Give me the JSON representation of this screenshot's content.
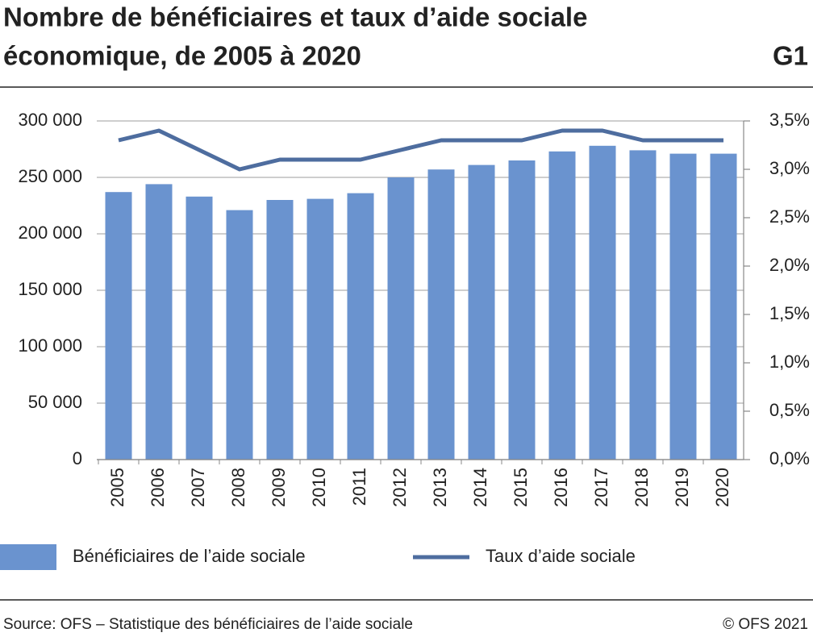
{
  "chart_data": {
    "type": "bar+line",
    "title": [
      "Nombre de bénéficiaires et taux d’aide sociale",
      "économique, de 2005 à 2020"
    ],
    "figure_label": "G1",
    "categories": [
      "2005",
      "2006",
      "2007",
      "2008",
      "2009",
      "2010",
      "2011",
      "2012",
      "2013",
      "2014",
      "2015",
      "2016",
      "2017",
      "2018",
      "2019",
      "2020"
    ],
    "series": [
      {
        "name": "Bénéficiaires de l’aide sociale",
        "type": "bar",
        "color": "#6a93cf",
        "values": [
          237000,
          244000,
          233000,
          221000,
          230000,
          231000,
          236000,
          250000,
          257000,
          261000,
          265000,
          273000,
          278000,
          274000,
          271000,
          271000
        ]
      },
      {
        "name": "Taux d’aide sociale",
        "type": "line",
        "axis": "y2",
        "color": "#4e6d9f",
        "values": [
          3.3,
          3.4,
          3.2,
          3.0,
          3.1,
          3.1,
          3.1,
          3.2,
          3.3,
          3.3,
          3.3,
          3.4,
          3.4,
          3.3,
          3.3,
          3.3
        ]
      }
    ],
    "ylim": [
      0,
      300000
    ],
    "yticks": [
      {
        "value": 0,
        "label": "0"
      },
      {
        "value": 50000,
        "label": "50 000"
      },
      {
        "value": 100000,
        "label": "100 000"
      },
      {
        "value": 150000,
        "label": "150 000"
      },
      {
        "value": 200000,
        "label": "200 000"
      },
      {
        "value": 250000,
        "label": "250 000"
      },
      {
        "value": 300000,
        "label": "300 000"
      }
    ],
    "y2lim": [
      0,
      3.5
    ],
    "y2ticks": [
      {
        "value": 0,
        "label": "0,0%"
      },
      {
        "value": 0.5,
        "label": "0,5%"
      },
      {
        "value": 1,
        "label": "1,0%"
      },
      {
        "value": 1.5,
        "label": "1,5%"
      },
      {
        "value": 2,
        "label": "2,0%"
      },
      {
        "value": 2.5,
        "label": "2,5%"
      },
      {
        "value": 3,
        "label": "3,0%"
      },
      {
        "value": 3.5,
        "label": "3,5%"
      }
    ],
    "grid": true,
    "source": "Source: OFS – Statistique des bénéficiaires de l’aide sociale",
    "copyright": "© OFS 2021"
  }
}
